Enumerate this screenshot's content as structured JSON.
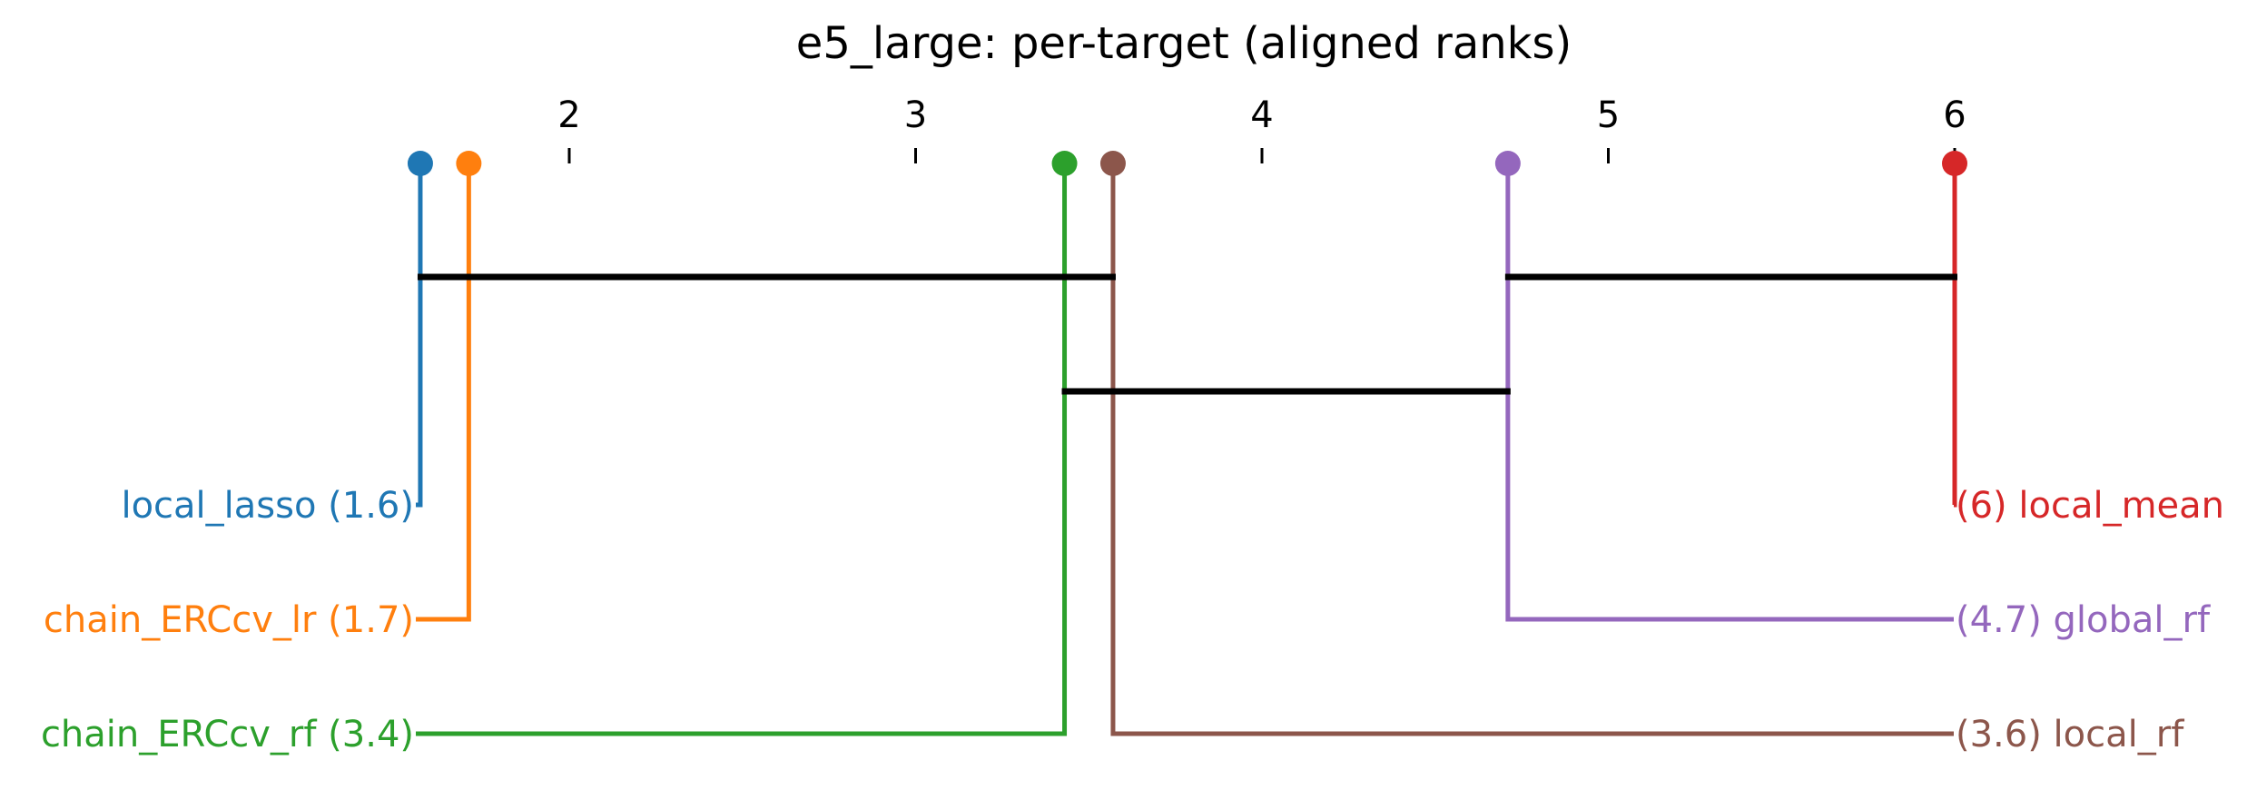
{
  "chart_data": {
    "type": "critical-difference",
    "title": "e5_large: per-target (aligned ranks)",
    "axis_ticks": [
      2,
      3,
      4,
      5,
      6
    ],
    "axis_range": [
      1.6,
      6
    ],
    "methods": [
      {
        "name": "local_lasso",
        "rank": 1.57,
        "rank_label": "1.6",
        "color": "#1f77b4",
        "side": "left"
      },
      {
        "name": "chain_ERCcv_lr",
        "rank": 1.71,
        "rank_label": "1.7",
        "color": "#ff7f0e",
        "side": "left"
      },
      {
        "name": "chain_ERCcv_rf",
        "rank": 3.43,
        "rank_label": "3.4",
        "color": "#2ca02c",
        "side": "left"
      },
      {
        "name": "local_rf",
        "rank": 3.57,
        "rank_label": "3.6",
        "color": "#8c564b",
        "side": "right"
      },
      {
        "name": "global_rf",
        "rank": 4.71,
        "rank_label": "4.7",
        "color": "#9467bd",
        "side": "right"
      },
      {
        "name": "local_mean",
        "rank": 6.0,
        "rank_label": "6",
        "color": "#d62728",
        "side": "right"
      }
    ],
    "cliques": [
      {
        "from": 1.57,
        "to": 3.57
      },
      {
        "from": 4.71,
        "to": 6.0
      },
      {
        "from": 3.43,
        "to": 4.71
      }
    ]
  }
}
